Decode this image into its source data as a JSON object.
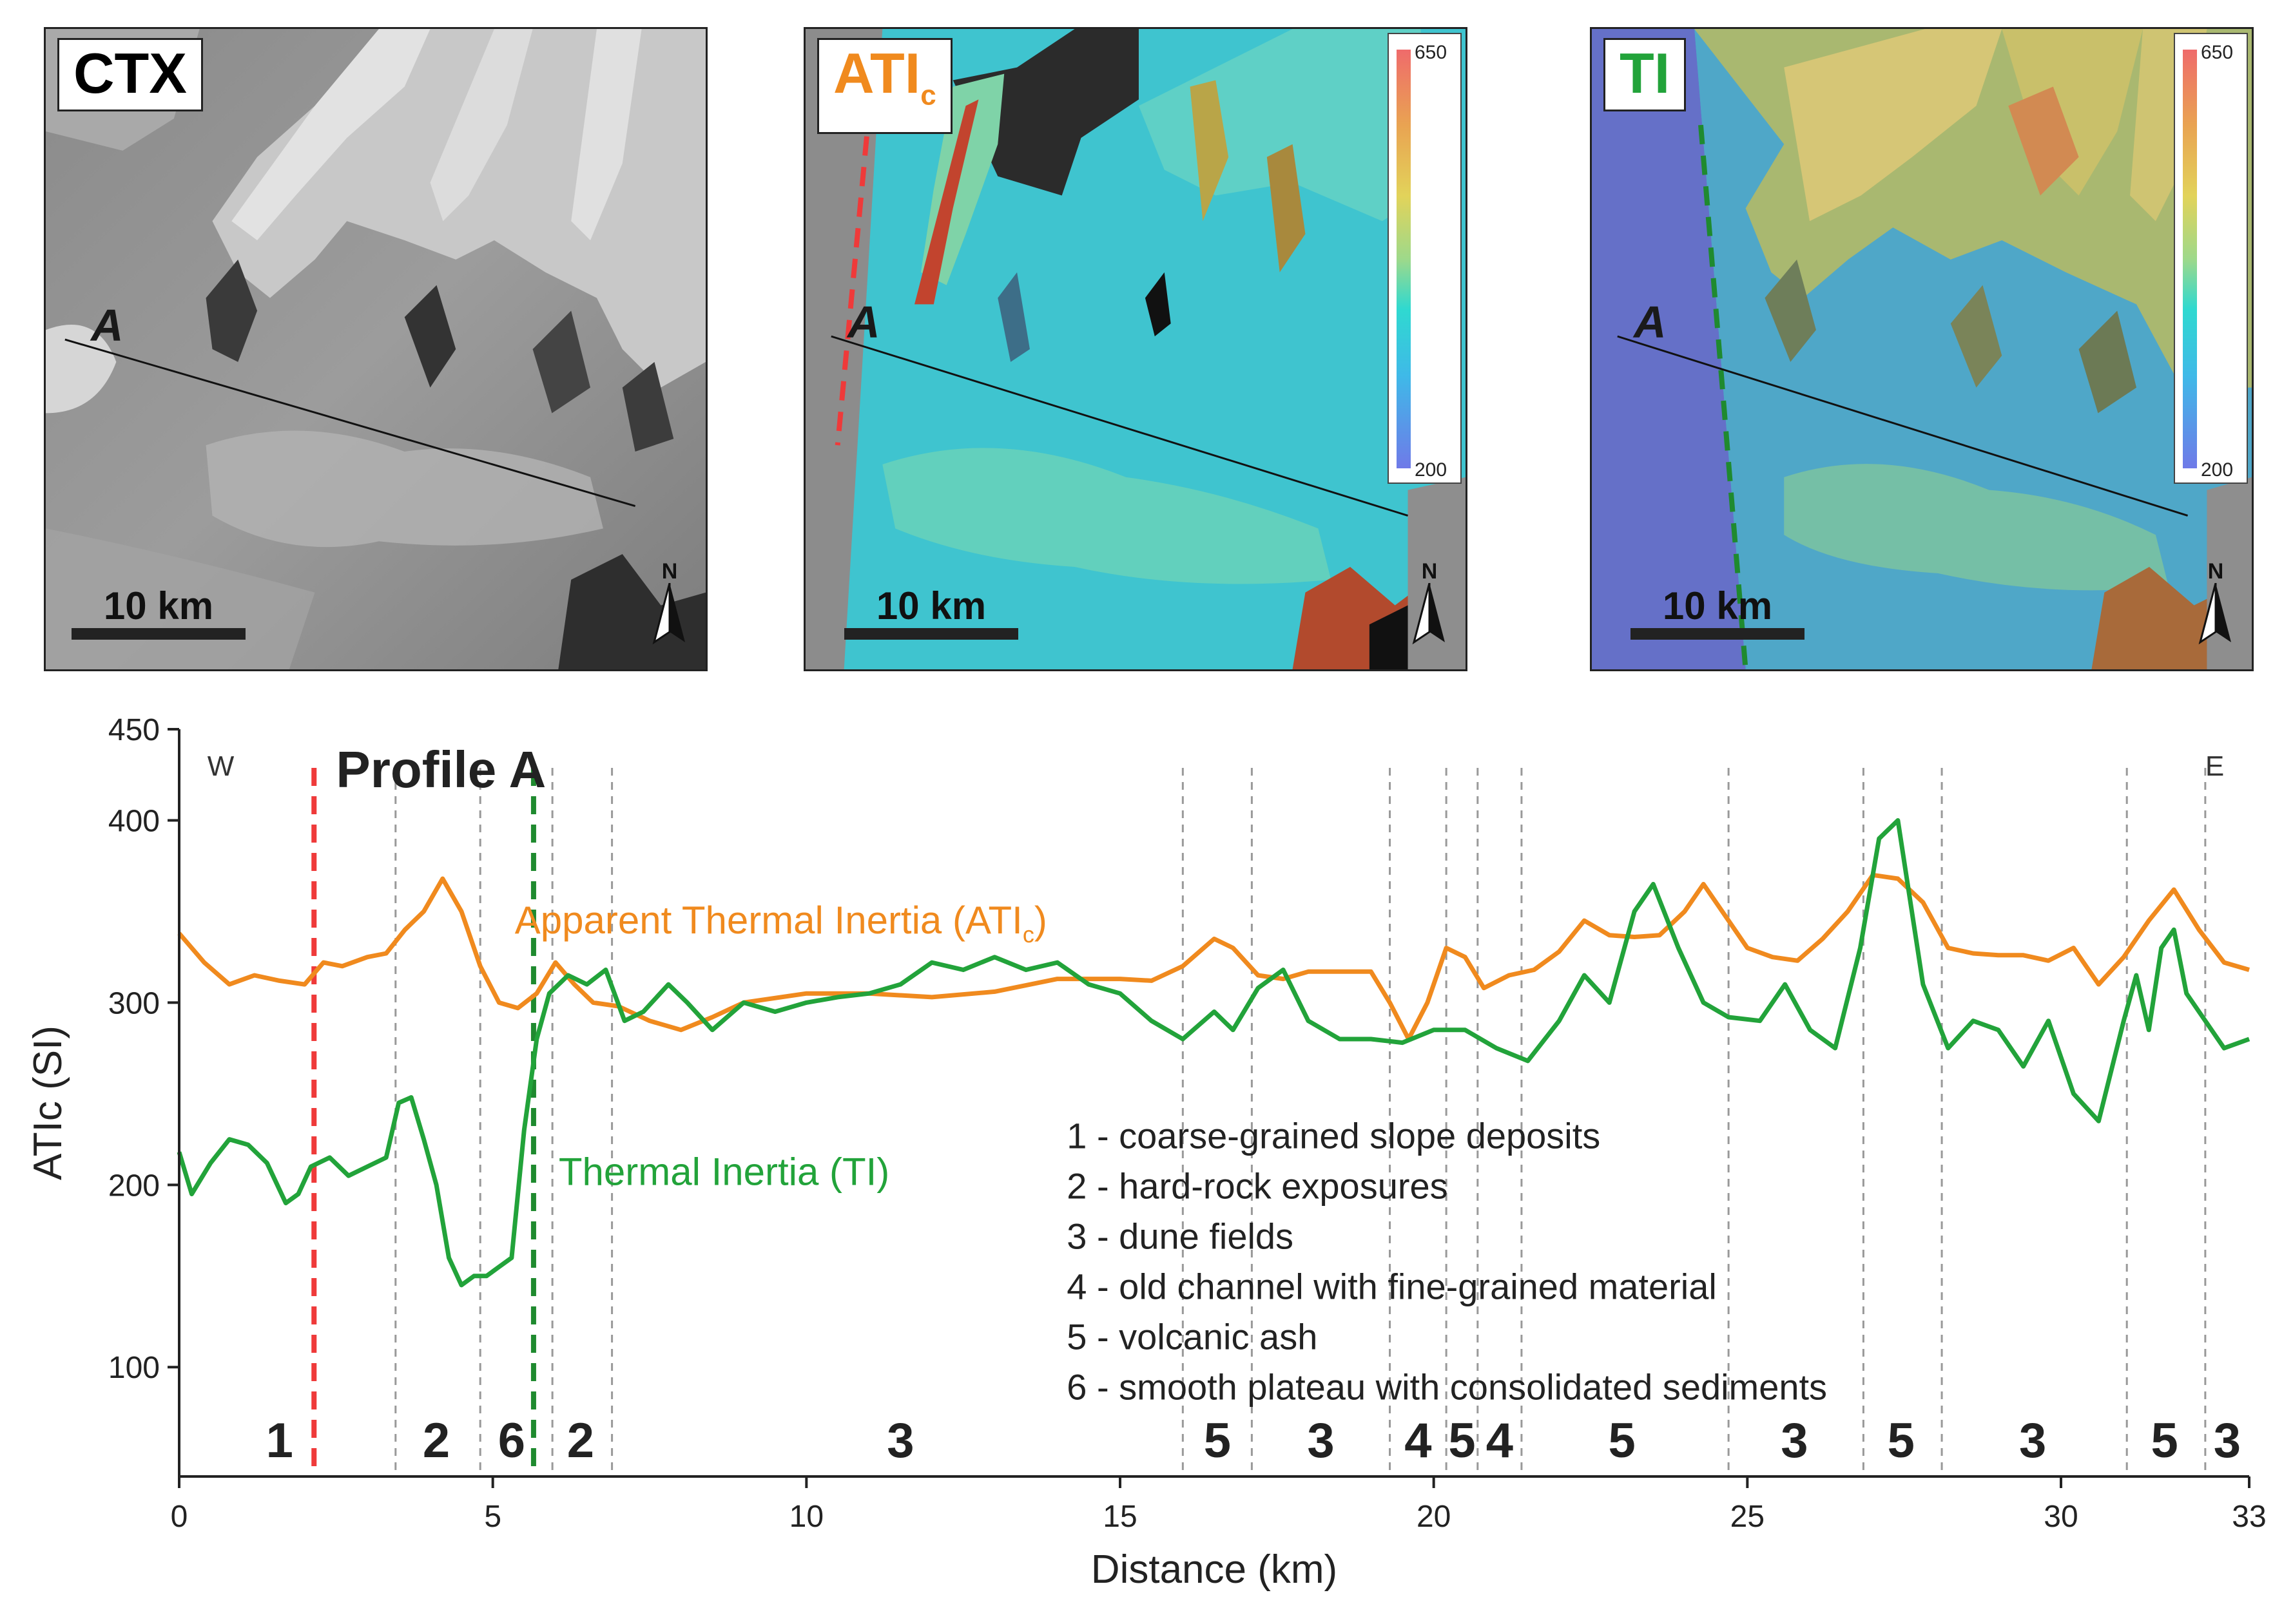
{
  "panels": {
    "ctx": {
      "label": "CTX",
      "point": "A",
      "scale": "10 km",
      "north": "N"
    },
    "atic": {
      "label_main": "ATI",
      "label_sub": "c",
      "point": "A",
      "scale": "10 km",
      "north": "N",
      "colorbar_max": "650",
      "colorbar_min": "200",
      "label_color": "#f08a1e"
    },
    "ti": {
      "label": "TI",
      "point": "A",
      "scale": "10 km",
      "north": "N",
      "colorbar_max": "650",
      "colorbar_min": "200",
      "label_color": "#22a33a"
    }
  },
  "chart_data": {
    "type": "line",
    "title": "Profile A",
    "xlabel": "Distance (km)",
    "ylabel": "ATIc (SI)",
    "xlim": [
      0,
      33
    ],
    "ylim": [
      40,
      450
    ],
    "xticks": [
      0,
      5,
      10,
      15,
      20,
      25,
      30,
      33
    ],
    "yticks": [
      100,
      200,
      300,
      400,
      450
    ],
    "direction_west": "W",
    "direction_east": "E",
    "series": [
      {
        "name": "Apparent Thermal Inertia (ATIc)",
        "label_main": "Apparent Thermal Inertia (ATI",
        "label_sub": "c",
        "label_end": ")",
        "color": "#f08a1e",
        "x": [
          0,
          0.4,
          0.8,
          1.2,
          1.6,
          2.0,
          2.3,
          2.6,
          3.0,
          3.3,
          3.6,
          3.9,
          4.2,
          4.5,
          4.8,
          5.1,
          5.4,
          5.7,
          6.0,
          6.3,
          6.6,
          7.0,
          7.5,
          8.0,
          8.5,
          9.0,
          10,
          11,
          12,
          13,
          14,
          15,
          15.5,
          16,
          16.5,
          16.8,
          17.2,
          17.6,
          18,
          19,
          19.3,
          19.6,
          19.9,
          20.2,
          20.5,
          20.8,
          21.2,
          21.6,
          22,
          22.4,
          22.8,
          23.2,
          23.6,
          24,
          24.3,
          24.6,
          25,
          25.4,
          25.8,
          26.2,
          26.6,
          27,
          27.4,
          27.8,
          28.2,
          28.6,
          29,
          29.4,
          29.8,
          30.2,
          30.6,
          31,
          31.4,
          31.8,
          32.2,
          32.6,
          33
        ],
        "values": [
          338,
          322,
          310,
          315,
          312,
          310,
          322,
          320,
          325,
          327,
          340,
          350,
          368,
          350,
          320,
          300,
          297,
          305,
          322,
          310,
          300,
          298,
          290,
          285,
          292,
          300,
          305,
          305,
          303,
          306,
          313,
          313,
          312,
          320,
          335,
          330,
          315,
          313,
          317,
          317,
          300,
          280,
          300,
          330,
          325,
          308,
          315,
          318,
          328,
          345,
          337,
          336,
          337,
          350,
          365,
          350,
          330,
          325,
          323,
          335,
          350,
          370,
          368,
          355,
          330,
          327,
          326,
          326,
          323,
          330,
          310,
          325,
          345,
          362,
          340,
          322,
          318
        ]
      },
      {
        "name": "Thermal Inertia (TI)",
        "label_main": "Thermal Inertia (TI)",
        "color": "#22a33a",
        "x": [
          0,
          0.2,
          0.5,
          0.8,
          1.1,
          1.4,
          1.7,
          1.9,
          2.1,
          2.4,
          2.7,
          3.0,
          3.3,
          3.5,
          3.7,
          3.9,
          4.1,
          4.3,
          4.5,
          4.7,
          4.9,
          5.1,
          5.3,
          5.5,
          5.7,
          5.9,
          6.2,
          6.5,
          6.8,
          7.1,
          7.4,
          7.8,
          8.1,
          8.5,
          9,
          9.5,
          10,
          10.5,
          11,
          11.5,
          12,
          12.5,
          13,
          13.5,
          14,
          14.5,
          15,
          15.5,
          16,
          16.5,
          16.8,
          17.2,
          17.6,
          18,
          18.5,
          19,
          19.5,
          20,
          20.5,
          21,
          21.5,
          22,
          22.4,
          22.8,
          23.2,
          23.5,
          23.9,
          24.3,
          24.7,
          25.2,
          25.6,
          26,
          26.4,
          26.8,
          27.1,
          27.4,
          27.8,
          28.2,
          28.6,
          29,
          29.4,
          29.8,
          30.2,
          30.6,
          31,
          31.2,
          31.4,
          31.6,
          31.8,
          32.0,
          32.3,
          32.6,
          33
        ],
        "values": [
          218,
          195,
          212,
          225,
          222,
          212,
          190,
          195,
          210,
          215,
          205,
          210,
          215,
          245,
          248,
          225,
          200,
          160,
          145,
          150,
          150,
          155,
          160,
          230,
          280,
          305,
          315,
          310,
          318,
          290,
          295,
          310,
          300,
          285,
          300,
          295,
          300,
          303,
          305,
          310,
          322,
          318,
          325,
          318,
          322,
          310,
          305,
          290,
          280,
          295,
          285,
          308,
          318,
          290,
          280,
          280,
          278,
          285,
          285,
          275,
          268,
          290,
          315,
          300,
          350,
          365,
          330,
          300,
          292,
          290,
          310,
          285,
          275,
          330,
          390,
          400,
          310,
          275,
          290,
          285,
          265,
          290,
          250,
          235,
          290,
          315,
          285,
          330,
          340,
          305,
          290,
          275,
          280
        ]
      }
    ],
    "reference_lines": [
      {
        "x": 2.15,
        "color": "#ef3a3a",
        "style": "dashed-bold"
      },
      {
        "x": 5.65,
        "color": "#1f8a2f",
        "style": "dashed-bold"
      }
    ],
    "unit_boundaries": [
      3.45,
      4.8,
      5.95,
      6.9,
      16.0,
      17.1,
      19.3,
      20.2,
      20.7,
      21.4,
      24.7,
      26.85,
      28.1,
      31.05,
      32.3
    ],
    "unit_labels": [
      {
        "text": "1",
        "x": 1.6
      },
      {
        "text": "2",
        "x": 4.1
      },
      {
        "text": "6",
        "x": 5.3
      },
      {
        "text": "2",
        "x": 6.4
      },
      {
        "text": "3",
        "x": 11.5
      },
      {
        "text": "5",
        "x": 16.55
      },
      {
        "text": "3",
        "x": 18.2
      },
      {
        "text": "4",
        "x": 19.75
      },
      {
        "text": "5",
        "x": 20.45
      },
      {
        "text": "4",
        "x": 21.05
      },
      {
        "text": "5",
        "x": 23.0
      },
      {
        "text": "3",
        "x": 25.75
      },
      {
        "text": "5",
        "x": 27.45
      },
      {
        "text": "3",
        "x": 29.55
      },
      {
        "text": "5",
        "x": 31.65
      },
      {
        "text": "3",
        "x": 32.65
      }
    ],
    "legend_items": [
      "1 - coarse-grained slope deposits",
      "2 - hard-rock exposures",
      "3 - dune fields",
      "4 - old channel with fine-grained material",
      "5 - volcanic ash",
      "6 - smooth plateau with consolidated sediments"
    ]
  }
}
